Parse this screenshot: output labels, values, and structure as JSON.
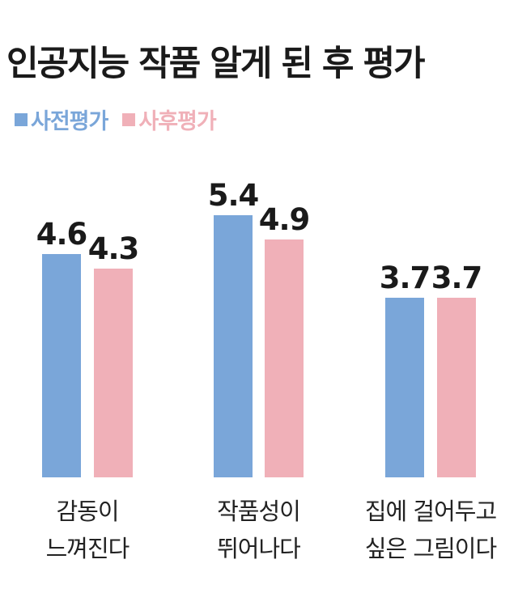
{
  "chart_data": {
    "type": "bar",
    "title": "인공지능 작품 알게 된 후 평가",
    "categories": [
      [
        "감동이",
        "느껴진다"
      ],
      [
        "작품성이",
        "뛰어나다"
      ],
      [
        "집에 걸어두고",
        "싶은 그림이다"
      ]
    ],
    "series": [
      {
        "name": "사전평가",
        "values": [
          4.6,
          5.4,
          3.7
        ],
        "color": "#7aa6d9"
      },
      {
        "name": "사후평가",
        "values": [
          4.3,
          4.9,
          3.7
        ],
        "color": "#f0b0b8"
      }
    ],
    "value_labels": [
      [
        "4.6",
        "5.4",
        "3.7"
      ],
      [
        "4.3",
        "4.9",
        "3.7"
      ]
    ],
    "ylim": [
      0,
      6.6
    ],
    "legend_position": "top-left",
    "grid": false
  }
}
